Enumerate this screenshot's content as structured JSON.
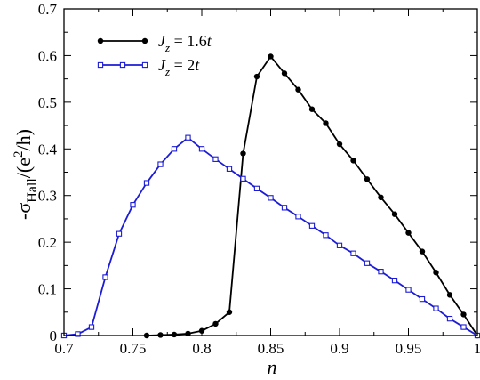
{
  "chart_data": {
    "type": "line",
    "xlabel": "n",
    "ylabel": {
      "prefix": "-σ",
      "subscript": "Hall",
      "middle": "/(e",
      "superscript": "2",
      "suffix": "/h)"
    },
    "xlim": [
      0.7,
      1.0
    ],
    "ylim": [
      0,
      0.7
    ],
    "xticks": [
      0.7,
      0.75,
      0.8,
      0.85,
      0.9,
      0.95,
      1.0
    ],
    "xtick_labels": [
      "0.7",
      "0.75",
      "0.8",
      "0.85",
      "0.9",
      "0.95",
      "1"
    ],
    "yticks": [
      0,
      0.1,
      0.2,
      0.3,
      0.4,
      0.5,
      0.6,
      0.7
    ],
    "ytick_labels": [
      "0",
      "0.1",
      "0.2",
      "0.3",
      "0.4",
      "0.5",
      "0.6",
      "0.7"
    ],
    "grid": false,
    "legend_position": "top-left",
    "series": [
      {
        "name": "J_z = 1.6t",
        "legend": {
          "symbol": "J",
          "subscript": "z",
          "value": " = 1.6",
          "unit": "t"
        },
        "color": "#000000",
        "marker": "circle",
        "x": [
          0.76,
          0.77,
          0.78,
          0.79,
          0.8,
          0.81,
          0.82,
          0.83,
          0.84,
          0.85,
          0.86,
          0.87,
          0.88,
          0.89,
          0.9,
          0.91,
          0.92,
          0.93,
          0.94,
          0.95,
          0.96,
          0.97,
          0.98,
          0.99,
          1.0
        ],
        "y": [
          0.0,
          0.001,
          0.002,
          0.004,
          0.01,
          0.025,
          0.05,
          0.39,
          0.555,
          0.598,
          0.562,
          0.527,
          0.485,
          0.455,
          0.41,
          0.375,
          0.335,
          0.296,
          0.26,
          0.22,
          0.18,
          0.135,
          0.087,
          0.045,
          0.0
        ]
      },
      {
        "name": "J_z = 2t",
        "legend": {
          "symbol": "J",
          "subscript": "z",
          "value": " = 2",
          "unit": "t"
        },
        "color": "#1c1cd6",
        "marker": "square",
        "x": [
          0.7,
          0.71,
          0.72,
          0.73,
          0.74,
          0.75,
          0.76,
          0.77,
          0.78,
          0.79,
          0.8,
          0.81,
          0.82,
          0.83,
          0.84,
          0.85,
          0.86,
          0.87,
          0.88,
          0.89,
          0.9,
          0.91,
          0.92,
          0.93,
          0.94,
          0.95,
          0.96,
          0.97,
          0.98,
          0.99,
          1.0
        ],
        "y": [
          0.0,
          0.003,
          0.018,
          0.125,
          0.218,
          0.28,
          0.327,
          0.367,
          0.4,
          0.424,
          0.4,
          0.378,
          0.357,
          0.336,
          0.315,
          0.295,
          0.274,
          0.255,
          0.235,
          0.215,
          0.193,
          0.176,
          0.155,
          0.137,
          0.118,
          0.098,
          0.078,
          0.058,
          0.036,
          0.018,
          0.0
        ]
      }
    ]
  }
}
